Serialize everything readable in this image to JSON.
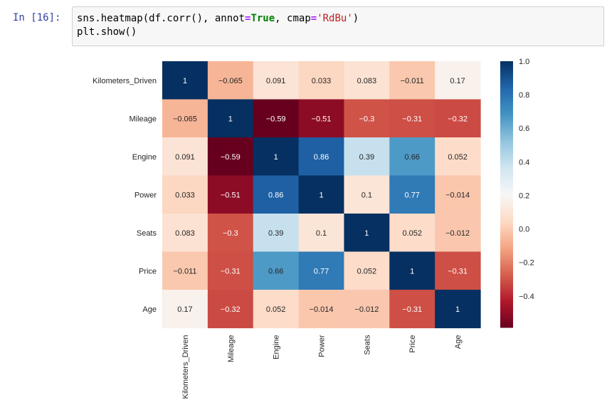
{
  "notebook": {
    "prompt": "In [16]:",
    "code": {
      "line1": {
        "call": "sns.heatmap(df.corr(), annot",
        "eq1": "=",
        "annot_value": "True",
        "sep": ", cmap",
        "eq2": "=",
        "cmap_value": "'RdBu'",
        "close": ")"
      },
      "line2": "plt.show()"
    }
  },
  "chart_data": {
    "type": "heatmap",
    "title": "",
    "xlabel": "",
    "ylabel": "",
    "colormap": "RdBu",
    "vmin": -0.59,
    "vmax": 1.0,
    "rows": [
      "Kilometers_Driven",
      "Mileage",
      "Engine",
      "Power",
      "Seats",
      "Price",
      "Age"
    ],
    "columns": [
      "Kilometers_Driven",
      "Mileage",
      "Engine",
      "Power",
      "Seats",
      "Price",
      "Age"
    ],
    "values": [
      [
        1,
        -0.065,
        0.091,
        0.033,
        0.083,
        -0.011,
        0.17
      ],
      [
        -0.065,
        1,
        -0.59,
        -0.51,
        -0.3,
        -0.31,
        -0.32
      ],
      [
        0.091,
        -0.59,
        1,
        0.86,
        0.39,
        0.66,
        0.052
      ],
      [
        0.033,
        -0.51,
        0.86,
        1,
        0.1,
        0.77,
        -0.014
      ],
      [
        0.083,
        -0.3,
        0.39,
        0.1,
        1,
        0.052,
        -0.012
      ],
      [
        -0.011,
        -0.31,
        0.66,
        0.77,
        0.052,
        1,
        -0.31
      ],
      [
        0.17,
        -0.32,
        0.052,
        -0.014,
        -0.012,
        -0.31,
        1
      ]
    ],
    "colorbar_ticks": [
      1.0,
      0.8,
      0.6,
      0.4,
      0.2,
      0.0,
      -0.2,
      -0.4
    ],
    "colorbar_tick_labels": [
      "1.0",
      "0.8",
      "0.6",
      "0.4",
      "0.2",
      "0.0",
      "−0.2",
      "−0.4"
    ],
    "legend_placement": "right"
  }
}
